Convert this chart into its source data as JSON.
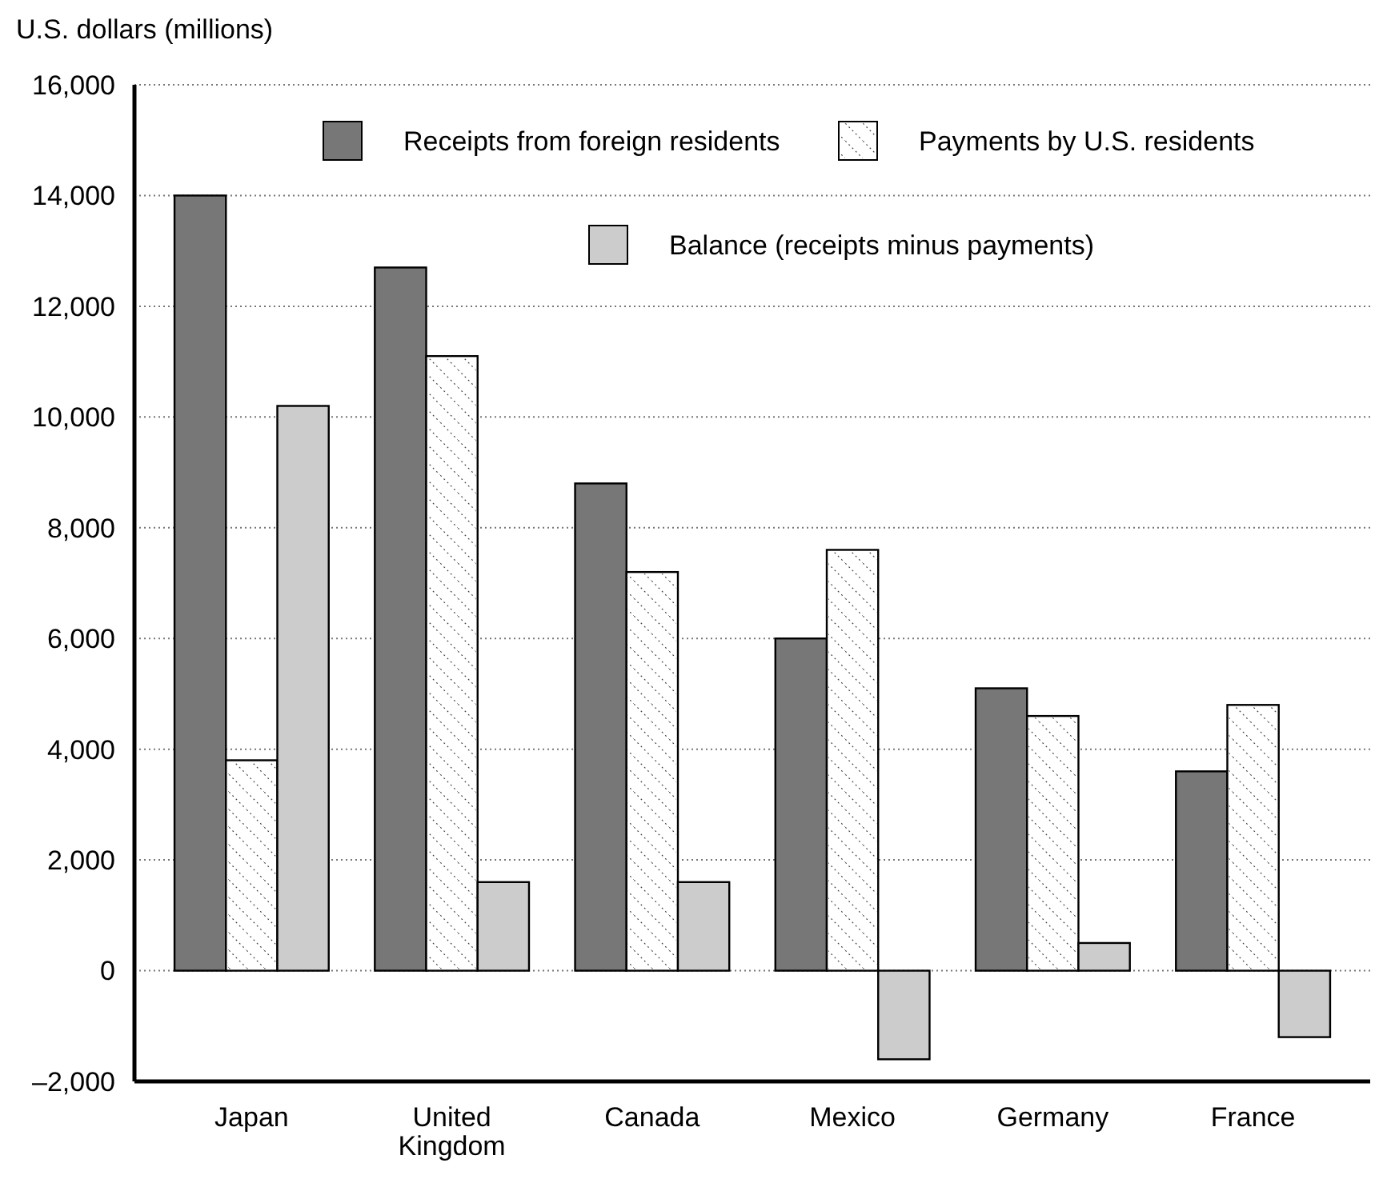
{
  "chart_data": {
    "type": "bar",
    "ylabel": "U.S. dollars (millions)",
    "categories": [
      "Japan",
      "United Kingdom",
      "Canada",
      "Mexico",
      "Germany",
      "France"
    ],
    "series": [
      {
        "name": "Receipts from foreign residents",
        "color": "#777777",
        "values": [
          14000,
          12700,
          8800,
          6000,
          5100,
          3600
        ]
      },
      {
        "name": "Payments by U.S. residents",
        "color": "#ffffff",
        "values": [
          3800,
          11100,
          7200,
          7600,
          4600,
          4800
        ]
      },
      {
        "name": "Balance (receipts minus payments)",
        "color": "#cccccc",
        "values": [
          10200,
          1600,
          1600,
          -1600,
          500,
          -1200
        ]
      }
    ],
    "ylim": [
      -2000,
      16000
    ],
    "yticks": [
      {
        "value": -2000,
        "label": "–2,000"
      },
      {
        "value": 0,
        "label": "0"
      },
      {
        "value": 2000,
        "label": "2,000"
      },
      {
        "value": 4000,
        "label": "4,000"
      },
      {
        "value": 6000,
        "label": "6,000"
      },
      {
        "value": 8000,
        "label": "8,000"
      },
      {
        "value": 10000,
        "label": "10,000"
      },
      {
        "value": 12000,
        "label": "12,000"
      },
      {
        "value": 14000,
        "label": "14,000"
      },
      {
        "value": 16000,
        "label": "16,000"
      }
    ],
    "grid": "y",
    "legend": "top"
  }
}
